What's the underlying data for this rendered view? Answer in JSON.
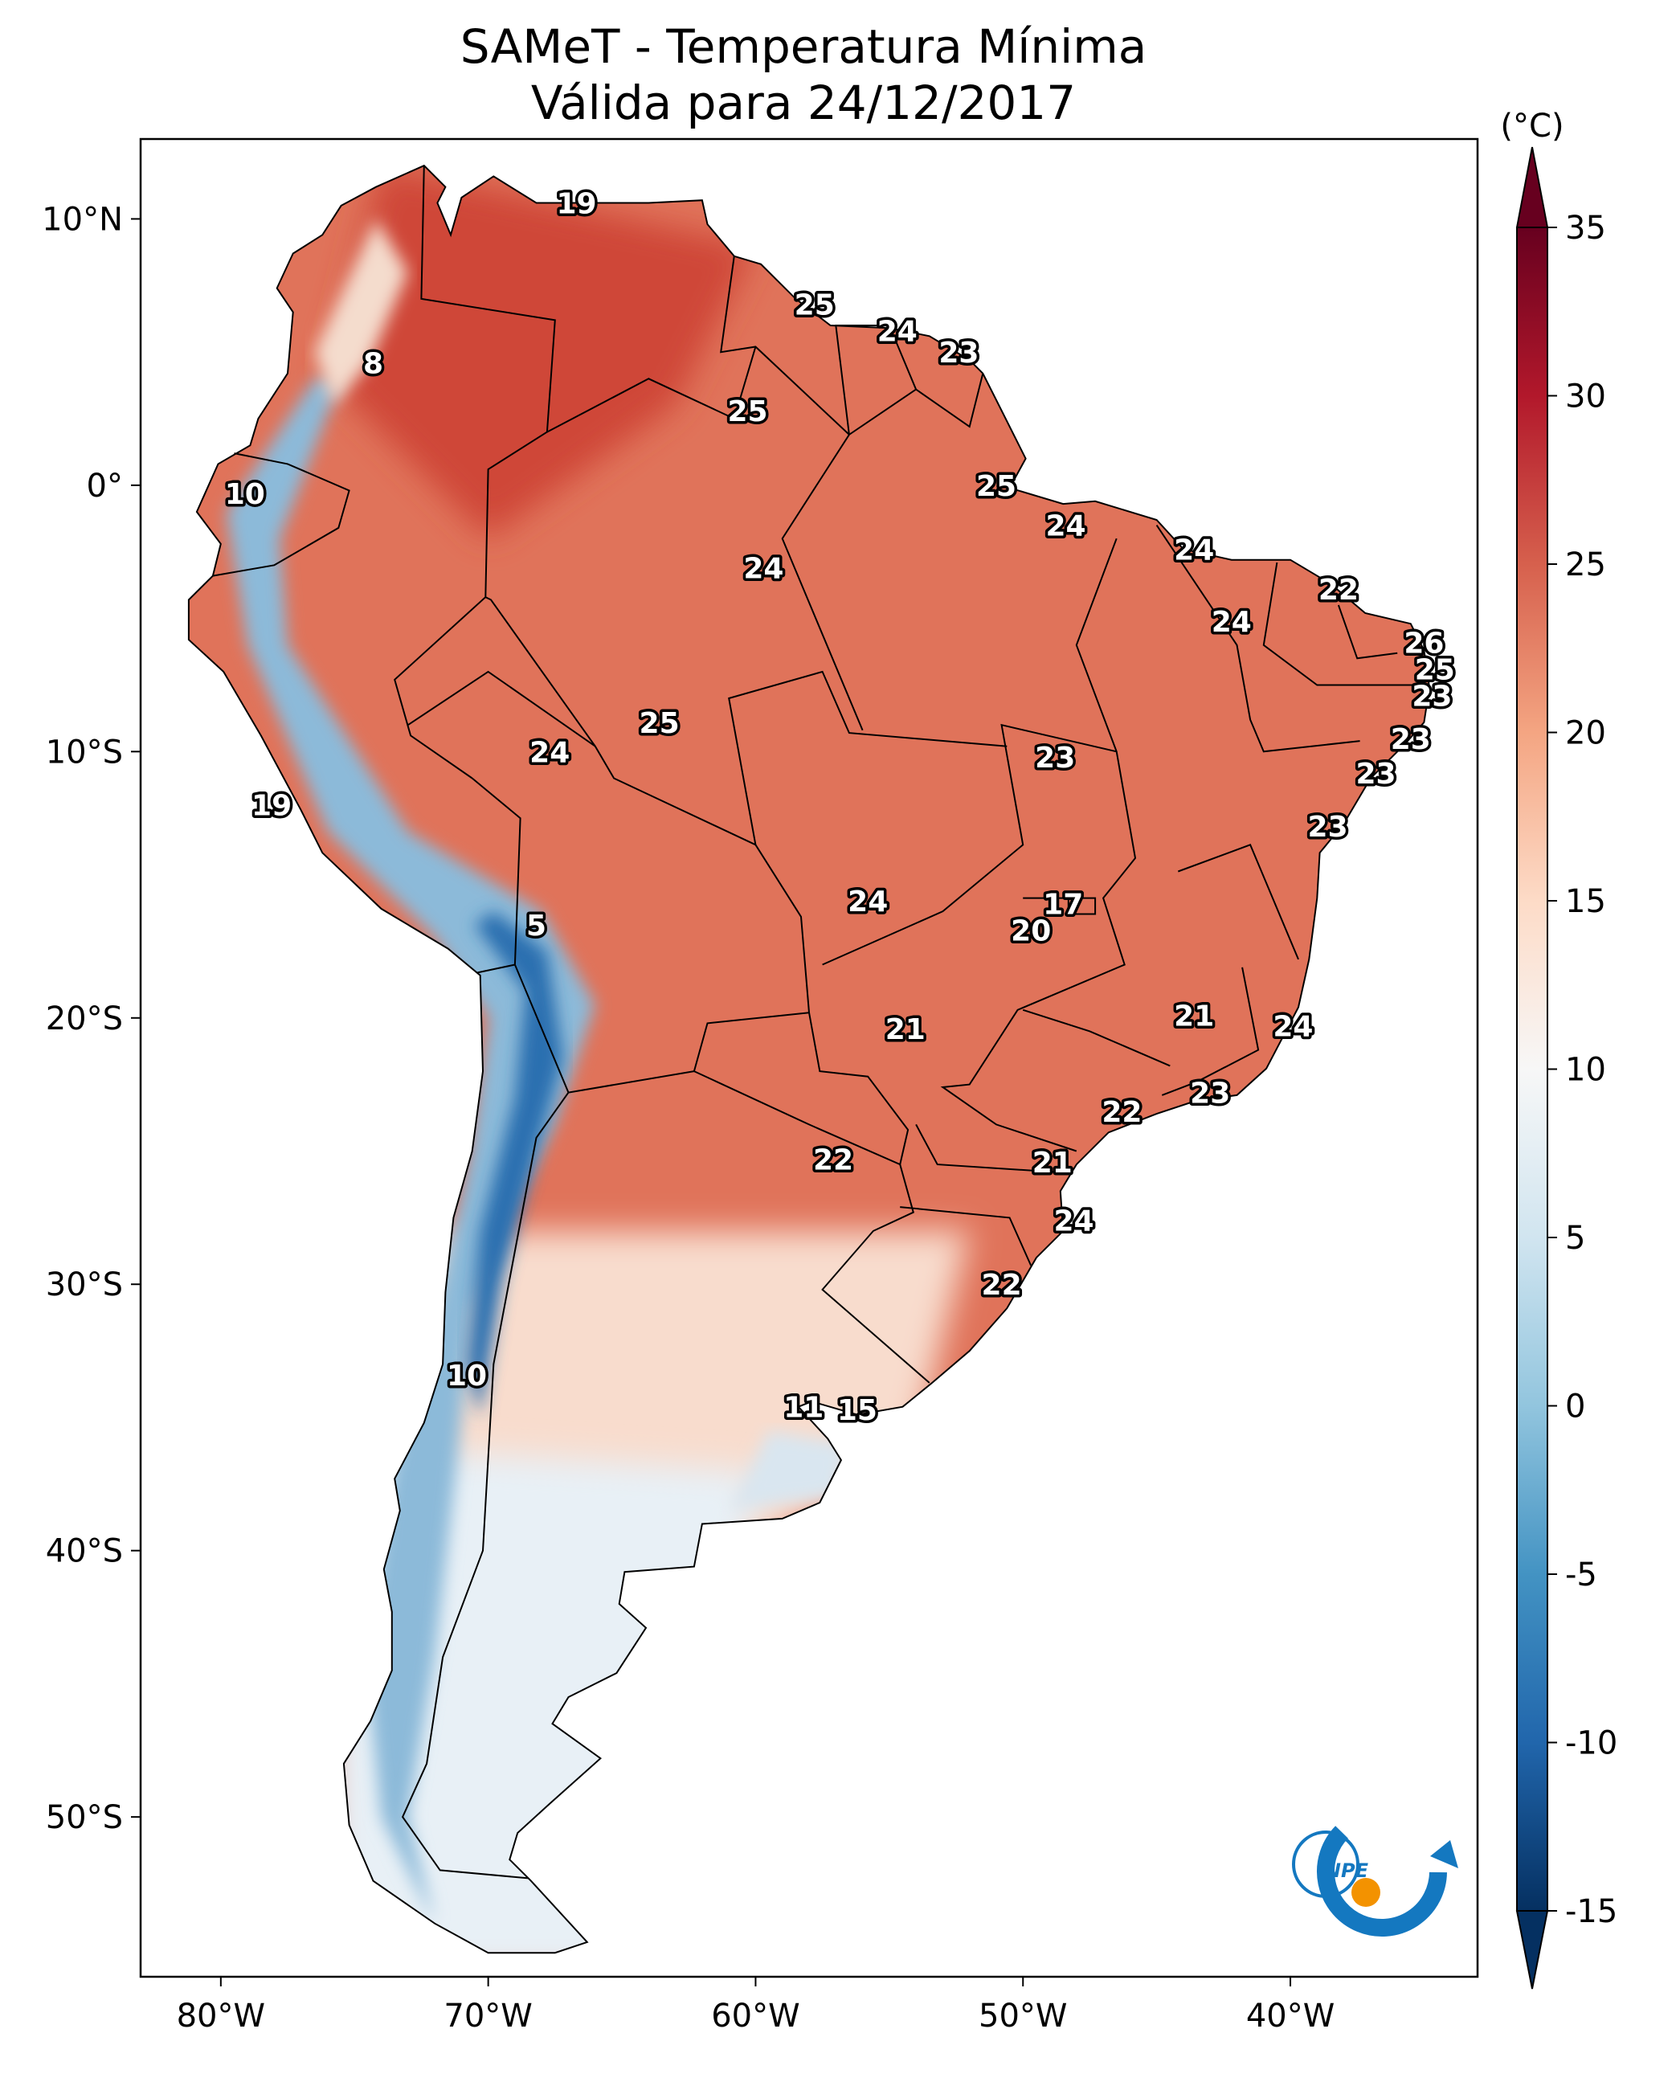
{
  "title": {
    "line1": "SAMeT - Temperatura Mínima",
    "line2": "Válida para 24/12/2017"
  },
  "map": {
    "lon_range": [
      -83,
      -33
    ],
    "lat_range": [
      -56,
      13
    ],
    "lon_ticks": [
      {
        "value": -80,
        "label": "80°W"
      },
      {
        "value": -70,
        "label": "70°W"
      },
      {
        "value": -60,
        "label": "60°W"
      },
      {
        "value": -50,
        "label": "50°W"
      },
      {
        "value": -40,
        "label": "40°W"
      }
    ],
    "lat_ticks": [
      {
        "value": 10,
        "label": "10°N"
      },
      {
        "value": 0,
        "label": "0°"
      },
      {
        "value": -10,
        "label": "10°S"
      },
      {
        "value": -20,
        "label": "20°S"
      },
      {
        "value": -30,
        "label": "30°S"
      },
      {
        "value": -40,
        "label": "40°S"
      },
      {
        "value": -50,
        "label": "50°S"
      }
    ],
    "point_labels": [
      {
        "lon": -66.7,
        "lat": 10.6,
        "text": "19"
      },
      {
        "lon": -57.8,
        "lat": 6.8,
        "text": "25"
      },
      {
        "lon": -54.7,
        "lat": 5.8,
        "text": "24"
      },
      {
        "lon": -52.4,
        "lat": 5.0,
        "text": "23"
      },
      {
        "lon": -74.3,
        "lat": 4.6,
        "text": "8"
      },
      {
        "lon": -60.3,
        "lat": 2.8,
        "text": "25"
      },
      {
        "lon": -79.1,
        "lat": -0.3,
        "text": "10"
      },
      {
        "lon": -51.0,
        "lat": -0.0,
        "text": "25"
      },
      {
        "lon": -48.4,
        "lat": -1.5,
        "text": "24"
      },
      {
        "lon": -43.6,
        "lat": -2.4,
        "text": "24"
      },
      {
        "lon": -59.7,
        "lat": -3.1,
        "text": "24"
      },
      {
        "lon": -38.2,
        "lat": -3.9,
        "text": "22"
      },
      {
        "lon": -42.2,
        "lat": -5.1,
        "text": "24"
      },
      {
        "lon": -35.0,
        "lat": -5.9,
        "text": "26"
      },
      {
        "lon": -34.6,
        "lat": -6.9,
        "text": "25"
      },
      {
        "lon": -34.7,
        "lat": -7.9,
        "text": "23"
      },
      {
        "lon": -63.6,
        "lat": -8.9,
        "text": "25"
      },
      {
        "lon": -35.5,
        "lat": -9.5,
        "text": "23"
      },
      {
        "lon": -48.8,
        "lat": -10.2,
        "text": "23"
      },
      {
        "lon": -67.7,
        "lat": -10.0,
        "text": "24"
      },
      {
        "lon": -36.8,
        "lat": -10.8,
        "text": "23"
      },
      {
        "lon": -78.1,
        "lat": -12.0,
        "text": "19"
      },
      {
        "lon": -38.6,
        "lat": -12.8,
        "text": "23"
      },
      {
        "lon": -48.5,
        "lat": -15.7,
        "text": "17"
      },
      {
        "lon": -55.8,
        "lat": -15.6,
        "text": "24"
      },
      {
        "lon": -68.2,
        "lat": -16.5,
        "text": "5"
      },
      {
        "lon": -49.7,
        "lat": -16.7,
        "text": "20"
      },
      {
        "lon": -43.6,
        "lat": -19.9,
        "text": "21"
      },
      {
        "lon": -54.4,
        "lat": -20.4,
        "text": "21"
      },
      {
        "lon": -39.9,
        "lat": -20.3,
        "text": "24"
      },
      {
        "lon": -43.0,
        "lat": -22.8,
        "text": "23"
      },
      {
        "lon": -46.3,
        "lat": -23.5,
        "text": "22"
      },
      {
        "lon": -57.1,
        "lat": -25.3,
        "text": "22"
      },
      {
        "lon": -48.9,
        "lat": -25.4,
        "text": "21"
      },
      {
        "lon": -48.1,
        "lat": -27.6,
        "text": "24"
      },
      {
        "lon": -50.8,
        "lat": -30.0,
        "text": "22"
      },
      {
        "lon": -70.8,
        "lat": -33.4,
        "text": "10"
      },
      {
        "lon": -58.2,
        "lat": -34.6,
        "text": "11"
      },
      {
        "lon": -56.2,
        "lat": -34.7,
        "text": "15"
      }
    ]
  },
  "colorbar": {
    "unit": "(°C)",
    "min": -15,
    "max": 35,
    "ticks": [
      "35",
      "30",
      "25",
      "20",
      "15",
      "10",
      "5",
      "0",
      "-5",
      "-10",
      "-15"
    ],
    "colors": [
      "#053061",
      "#2166ac",
      "#4393c3",
      "#92c5de",
      "#d1e5f0",
      "#f7f7f7",
      "#fddbc7",
      "#f4a582",
      "#d6604d",
      "#b2182b",
      "#67001f"
    ]
  },
  "logo": {
    "text": "INPE",
    "colors": {
      "blue": "#1478c0",
      "orange": "#f39200"
    }
  },
  "temperature_field": {
    "highland_cold": "#8cbad9",
    "andes_very_cold": "#2c6fb0",
    "warm_lowland": "#e0735a",
    "hot_core": "#cf4738",
    "south_mild": "#f8dccd",
    "patagonia": "#e8f0f6"
  }
}
